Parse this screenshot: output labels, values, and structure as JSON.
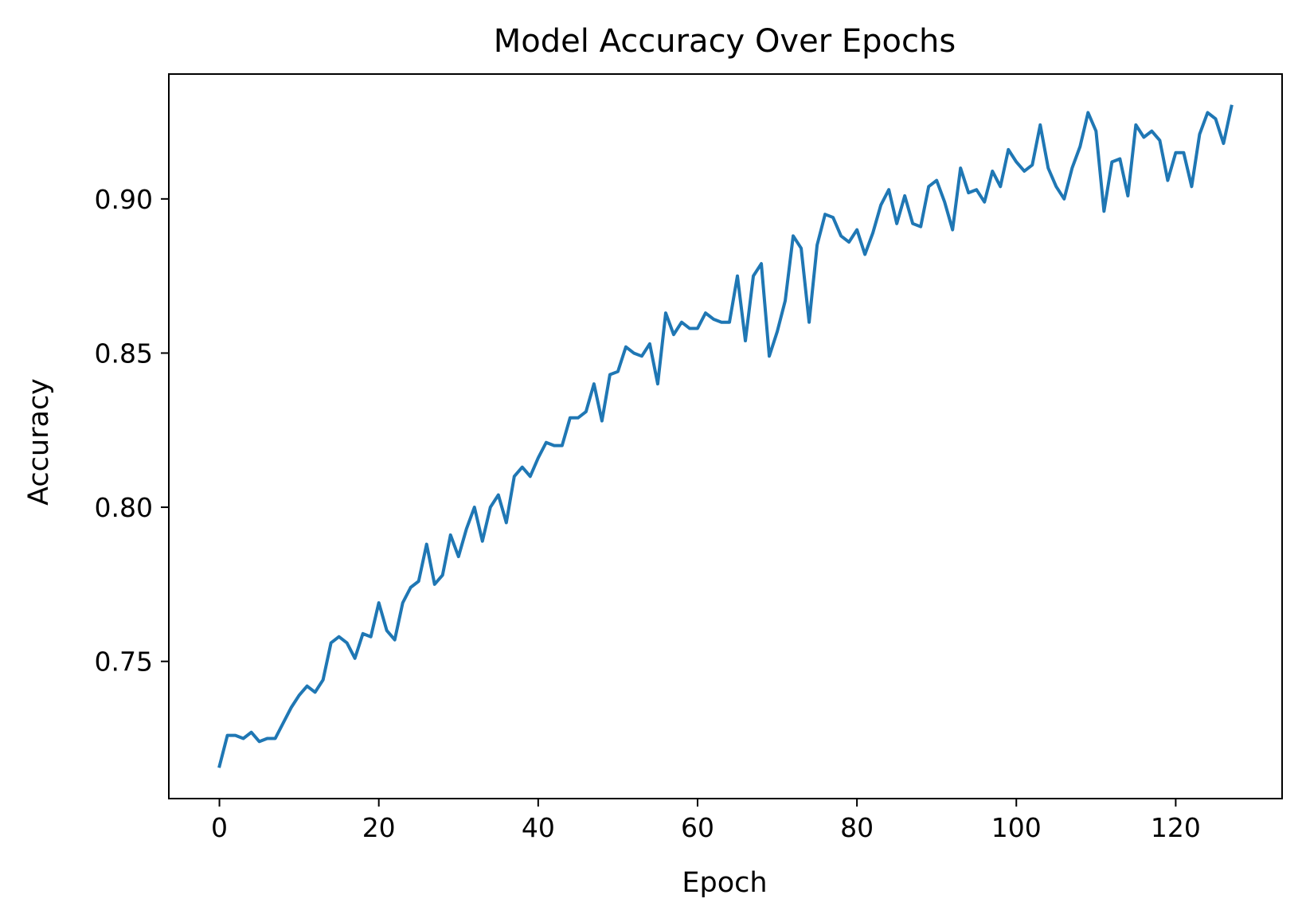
{
  "chart_data": {
    "type": "line",
    "title": "Model Accuracy Over Epochs",
    "xlabel": "Epoch",
    "ylabel": "Accuracy",
    "xlim": [
      -6.35,
      133.35
    ],
    "ylim": [
      0.7055,
      0.9405
    ],
    "xticks": [
      0,
      20,
      40,
      60,
      80,
      100,
      120
    ],
    "yticks": [
      0.75,
      0.8,
      0.85,
      0.9
    ],
    "xtick_labels": [
      "0",
      "20",
      "40",
      "60",
      "80",
      "100",
      "120"
    ],
    "ytick_labels": [
      "0.75",
      "0.80",
      "0.85",
      "0.90"
    ],
    "grid": false,
    "series": [
      {
        "color": "#1f77b4",
        "x": [
          0,
          1,
          2,
          3,
          4,
          5,
          6,
          7,
          8,
          9,
          10,
          11,
          12,
          13,
          14,
          15,
          16,
          17,
          18,
          19,
          20,
          21,
          22,
          23,
          24,
          25,
          26,
          27,
          28,
          29,
          30,
          31,
          32,
          33,
          34,
          35,
          36,
          37,
          38,
          39,
          40,
          41,
          42,
          43,
          44,
          45,
          46,
          47,
          48,
          49,
          50,
          51,
          52,
          53,
          54,
          55,
          56,
          57,
          58,
          59,
          60,
          61,
          62,
          63,
          64,
          65,
          66,
          67,
          68,
          69,
          70,
          71,
          72,
          73,
          74,
          75,
          76,
          77,
          78,
          79,
          80,
          81,
          82,
          83,
          84,
          85,
          86,
          87,
          88,
          89,
          90,
          91,
          92,
          93,
          94,
          95,
          96,
          97,
          98,
          99,
          100,
          101,
          102,
          103,
          104,
          105,
          106,
          107,
          108,
          109,
          110,
          111,
          112,
          113,
          114,
          115,
          116,
          117,
          118,
          119,
          120,
          121,
          122,
          123,
          124,
          125,
          126,
          127
        ],
        "y": [
          0.716,
          0.726,
          0.726,
          0.725,
          0.727,
          0.724,
          0.725,
          0.725,
          0.73,
          0.735,
          0.739,
          0.742,
          0.74,
          0.744,
          0.756,
          0.758,
          0.756,
          0.751,
          0.759,
          0.758,
          0.769,
          0.76,
          0.757,
          0.769,
          0.774,
          0.776,
          0.788,
          0.775,
          0.778,
          0.791,
          0.784,
          0.793,
          0.8,
          0.789,
          0.8,
          0.804,
          0.795,
          0.81,
          0.813,
          0.81,
          0.816,
          0.821,
          0.82,
          0.82,
          0.829,
          0.829,
          0.831,
          0.84,
          0.828,
          0.843,
          0.844,
          0.852,
          0.85,
          0.849,
          0.853,
          0.84,
          0.863,
          0.856,
          0.86,
          0.858,
          0.858,
          0.863,
          0.861,
          0.86,
          0.86,
          0.875,
          0.854,
          0.875,
          0.879,
          0.849,
          0.857,
          0.867,
          0.888,
          0.884,
          0.86,
          0.885,
          0.895,
          0.894,
          0.888,
          0.886,
          0.89,
          0.882,
          0.889,
          0.898,
          0.903,
          0.892,
          0.901,
          0.892,
          0.891,
          0.904,
          0.906,
          0.899,
          0.89,
          0.91,
          0.902,
          0.903,
          0.899,
          0.909,
          0.904,
          0.916,
          0.912,
          0.909,
          0.911,
          0.924,
          0.91,
          0.904,
          0.9,
          0.91,
          0.917,
          0.928,
          0.922,
          0.896,
          0.912,
          0.913,
          0.901,
          0.924,
          0.92,
          0.922,
          0.919,
          0.906,
          0.915,
          0.915,
          0.904,
          0.921,
          0.928,
          0.926,
          0.918,
          0.93
        ]
      }
    ]
  }
}
